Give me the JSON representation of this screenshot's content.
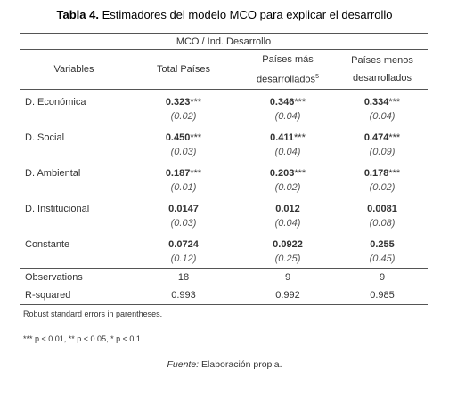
{
  "title": {
    "label": "Tabla 4.",
    "text": "Estimadores del modelo MCO para explicar el desarrollo"
  },
  "table": {
    "group_header": "MCO / Ind. Desarrollo",
    "columns": [
      {
        "text": "Variables"
      },
      {
        "text": "Total Países"
      },
      {
        "text": "Países más desarrollados",
        "sup": "5"
      },
      {
        "text": "Países menos desarrollados"
      }
    ],
    "rows": [
      {
        "label": "D. Económica",
        "cells": [
          {
            "coef": "0.323",
            "stars": "***",
            "se": "(0.02)"
          },
          {
            "coef": "0.346",
            "stars": "***",
            "se": "(0.04)"
          },
          {
            "coef": "0.334",
            "stars": "***",
            "se": "(0.04)"
          }
        ]
      },
      {
        "label": "D. Social",
        "cells": [
          {
            "coef": "0.450",
            "stars": "***",
            "se": "(0.03)"
          },
          {
            "coef": "0.411",
            "stars": "***",
            "se": "(0.04)"
          },
          {
            "coef": "0.474",
            "stars": "***",
            "se": "(0.09)"
          }
        ]
      },
      {
        "label": "D. Ambiental",
        "cells": [
          {
            "coef": "0.187",
            "stars": "***",
            "se": "(0.01)"
          },
          {
            "coef": "0.203",
            "stars": "***",
            "se": "(0.02)"
          },
          {
            "coef": "0.178",
            "stars": "***",
            "se": "(0.02)"
          }
        ]
      },
      {
        "label": "D. Institucional",
        "cells": [
          {
            "coef": "0.0147",
            "se": "(0.03)"
          },
          {
            "coef": "0.012",
            "se": "(0.04)"
          },
          {
            "coef": "0.0081",
            "se": "(0.08)"
          }
        ]
      },
      {
        "label": "Constante",
        "cells": [
          {
            "coef": "0.0724",
            "se": "(0.12)"
          },
          {
            "coef": "0.0922",
            "se": "(0.25)"
          },
          {
            "coef": "0.255",
            "se": "(0.45)"
          }
        ]
      }
    ],
    "stats": [
      {
        "label": "Observations",
        "values": [
          "18",
          "9",
          "9"
        ]
      },
      {
        "label": "R-squared",
        "values": [
          "0.993",
          "0.992",
          "0.985"
        ]
      }
    ]
  },
  "notes": [
    "Robust standard errors in parentheses.",
    "*** p < 0.01, ** p < 0.05, * p < 0.1"
  ],
  "source": {
    "label": "Fuente:",
    "text": "Elaboración propia."
  }
}
